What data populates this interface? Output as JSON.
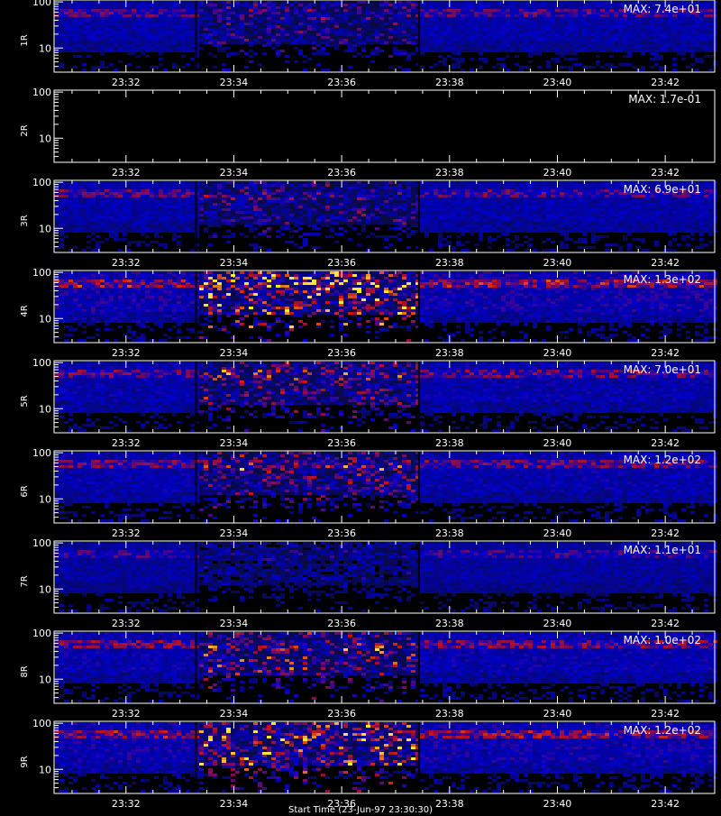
{
  "chart_data": {
    "type": "heatmap",
    "time_range": [
      "23:30:40",
      "23:42:55"
    ],
    "x_ticks": [
      "23:32",
      "23:34",
      "23:36",
      "23:38",
      "23:40",
      "23:42"
    ],
    "y_scale": "log",
    "ylim": [
      3,
      110
    ],
    "y_ticks": [
      "100",
      "10"
    ],
    "bottom_label": "Start Time (23-Jun-97 23:30:30)",
    "panels": [
      {
        "label": "1R",
        "max": "MAX: 7.4e+01",
        "band": 60,
        "intensity": 0.7
      },
      {
        "label": "2R",
        "max": "MAX: 1.7e-01",
        "band": 60,
        "intensity": 0.0
      },
      {
        "label": "3R",
        "max": "MAX: 6.9e+01",
        "band": 60,
        "intensity": 0.7
      },
      {
        "label": "4R",
        "max": "MAX: 1.3e+02",
        "band": 60,
        "intensity": 1.0
      },
      {
        "label": "5R",
        "max": "MAX: 7.0e+01",
        "band": 60,
        "intensity": 0.8
      },
      {
        "label": "6R",
        "max": "MAX: 1.2e+02",
        "band": 60,
        "intensity": 0.8
      },
      {
        "label": "7R",
        "max": "MAX: 1.1e+01",
        "band": 60,
        "intensity": 0.55
      },
      {
        "label": "8R",
        "max": "MAX: 1.0e+02",
        "band": 60,
        "intensity": 0.85
      },
      {
        "label": "9R",
        "max": "MAX: 1.2e+02",
        "band": 60,
        "intensity": 0.95
      }
    ],
    "colors": {
      "background": "#000000",
      "low": "#0000c8",
      "mid": "#c81414",
      "high": "#ffe632",
      "axis": "#ffffff"
    }
  }
}
